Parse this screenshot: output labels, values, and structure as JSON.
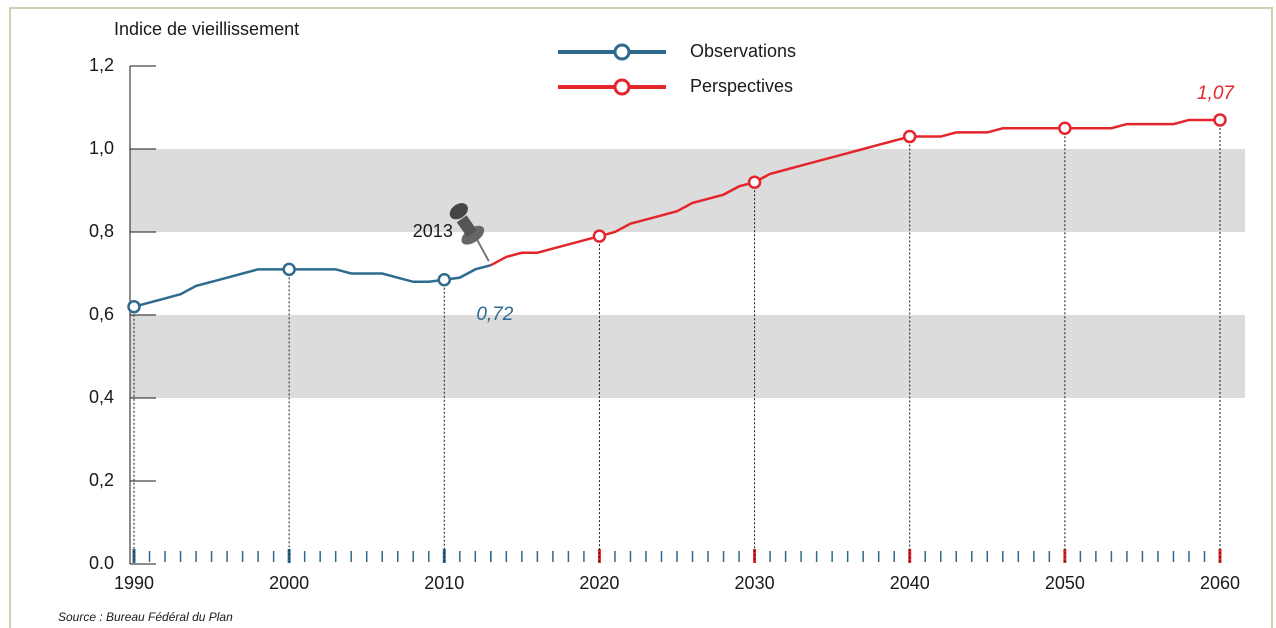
{
  "chart_data": {
    "type": "line",
    "title": "Indice de vieillissement",
    "source": "Source : Bureau Fédéral du Plan",
    "pin_label": "2013",
    "xlim": [
      1990,
      2060
    ],
    "xticks": [
      1990,
      2000,
      2010,
      2020,
      2030,
      2040,
      2050,
      2060
    ],
    "ylim": [
      0,
      1.2
    ],
    "yticks": [
      {
        "value": 0,
        "label": "0.0"
      },
      {
        "value": 0.2,
        "label": "0,2"
      },
      {
        "value": 0.4,
        "label": "0,4"
      },
      {
        "value": 0.6,
        "label": "0,6"
      },
      {
        "value": 0.8,
        "label": "0,8"
      },
      {
        "value": 1.0,
        "label": "1,0"
      },
      {
        "value": 1.2,
        "label": "1,2"
      }
    ],
    "bands": [
      [
        0.4,
        0.6
      ],
      [
        0.8,
        1.0
      ]
    ],
    "band_color": "#dcdcdd",
    "legend": "top-center",
    "series": [
      {
        "name": "Observations",
        "color": "#2e6a8e",
        "x": [
          1990,
          1991,
          1992,
          1993,
          1994,
          1995,
          1996,
          1997,
          1998,
          1999,
          2000,
          2001,
          2002,
          2003,
          2004,
          2005,
          2006,
          2007,
          2008,
          2009,
          2010,
          2011,
          2012,
          2013
        ],
        "values": [
          0.62,
          0.63,
          0.64,
          0.65,
          0.67,
          0.68,
          0.69,
          0.7,
          0.71,
          0.71,
          0.71,
          0.71,
          0.71,
          0.71,
          0.7,
          0.7,
          0.7,
          0.69,
          0.68,
          0.68,
          0.685,
          0.69,
          0.71,
          0.72
        ],
        "value_labels": [
          null,
          null,
          null,
          null,
          null,
          null,
          null,
          null,
          null,
          null,
          null,
          null,
          null,
          null,
          null,
          null,
          null,
          null,
          null,
          null,
          null,
          null,
          null,
          "0,72"
        ]
      },
      {
        "name": "Perspectives",
        "color": "#e3262c",
        "x": [
          2013,
          2014,
          2015,
          2016,
          2017,
          2018,
          2019,
          2020,
          2021,
          2022,
          2023,
          2024,
          2025,
          2026,
          2027,
          2028,
          2029,
          2030,
          2031,
          2032,
          2033,
          2034,
          2035,
          2036,
          2037,
          2038,
          2039,
          2040,
          2041,
          2042,
          2043,
          2044,
          2045,
          2046,
          2047,
          2048,
          2049,
          2050,
          2051,
          2052,
          2053,
          2054,
          2055,
          2056,
          2057,
          2058,
          2059,
          2060
        ],
        "values": [
          0.72,
          0.74,
          0.75,
          0.75,
          0.76,
          0.77,
          0.78,
          0.79,
          0.8,
          0.82,
          0.83,
          0.84,
          0.85,
          0.87,
          0.88,
          0.89,
          0.91,
          0.92,
          0.94,
          0.95,
          0.96,
          0.97,
          0.98,
          0.99,
          1.0,
          1.01,
          1.02,
          1.03,
          1.03,
          1.03,
          1.04,
          1.04,
          1.04,
          1.05,
          1.05,
          1.05,
          1.05,
          1.05,
          1.05,
          1.05,
          1.05,
          1.06,
          1.06,
          1.06,
          1.06,
          1.07,
          1.07,
          1.07
        ],
        "value_labels": [
          null,
          null,
          null,
          null,
          null,
          null,
          null,
          null,
          null,
          null,
          null,
          null,
          null,
          null,
          null,
          null,
          null,
          null,
          null,
          null,
          null,
          null,
          null,
          null,
          null,
          null,
          null,
          null,
          null,
          null,
          null,
          null,
          null,
          null,
          null,
          null,
          null,
          null,
          null,
          null,
          null,
          null,
          null,
          null,
          null,
          null,
          null,
          "1,07"
        ]
      }
    ]
  }
}
